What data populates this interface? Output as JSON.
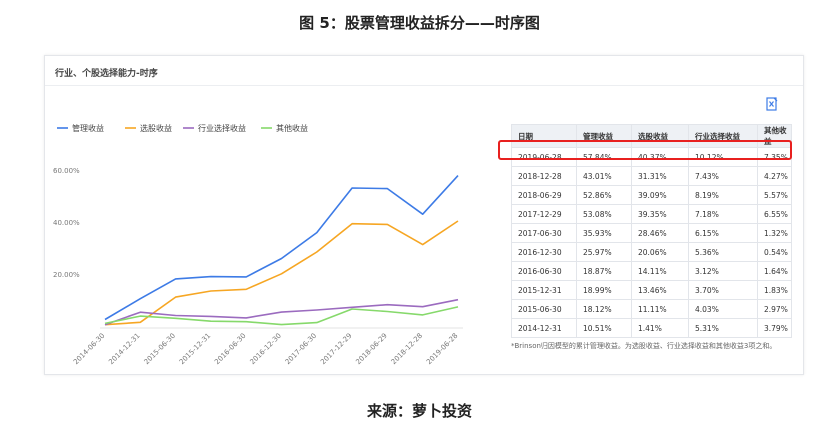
{
  "figure_title": "图 5：股票管理收益拆分——时序图",
  "panel_title": "行业、个股选择能力-时序",
  "source": "来源：萝卜投资",
  "icons": {
    "export": "export-excel-icon"
  },
  "colors": {
    "管理收益": "#3d7be6",
    "选股收益": "#f6a623",
    "行业选择收益": "#9b6bbf",
    "其他收益": "#86d96b",
    "highlight": "#e8201f"
  },
  "chart_data": {
    "type": "line",
    "x": [
      "2014-06-30",
      "2014-12-31",
      "2015-06-30",
      "2015-12-31",
      "2016-06-30",
      "2016-12-30",
      "2017-06-30",
      "2017-12-29",
      "2018-06-29",
      "2018-12-28",
      "2019-06-28"
    ],
    "series": [
      {
        "name": "管理收益",
        "values": [
          2.5,
          10.51,
          18.12,
          18.99,
          18.87,
          25.97,
          35.93,
          53.08,
          52.86,
          43.01,
          57.84
        ]
      },
      {
        "name": "选股收益",
        "values": [
          0.5,
          1.41,
          11.11,
          13.46,
          14.11,
          20.06,
          28.46,
          39.35,
          39.09,
          31.31,
          40.37
        ]
      },
      {
        "name": "行业选择收益",
        "values": [
          0.5,
          5.31,
          4.03,
          3.7,
          3.12,
          5.36,
          6.15,
          7.18,
          8.19,
          7.43,
          10.12
        ]
      },
      {
        "name": "其他收益",
        "values": [
          1.0,
          3.79,
          2.97,
          1.83,
          1.64,
          0.54,
          1.32,
          6.55,
          5.57,
          4.27,
          7.35
        ]
      }
    ],
    "yticks": [
      "20.00%",
      "40.00%",
      "60.00%"
    ],
    "ylim": [
      0,
      70
    ],
    "legend": "top-left",
    "grid": false
  },
  "table": {
    "headers": [
      "日期",
      "管理收益",
      "选股收益",
      "行业选择收益",
      "其他收益"
    ],
    "rows": [
      [
        "2019-06-28",
        "57.84%",
        "40.37%",
        "10.12%",
        "7.35%"
      ],
      [
        "2018-12-28",
        "43.01%",
        "31.31%",
        "7.43%",
        "4.27%"
      ],
      [
        "2018-06-29",
        "52.86%",
        "39.09%",
        "8.19%",
        "5.57%"
      ],
      [
        "2017-12-29",
        "53.08%",
        "39.35%",
        "7.18%",
        "6.55%"
      ],
      [
        "2017-06-30",
        "35.93%",
        "28.46%",
        "6.15%",
        "1.32%"
      ],
      [
        "2016-12-30",
        "25.97%",
        "20.06%",
        "5.36%",
        "0.54%"
      ],
      [
        "2016-06-30",
        "18.87%",
        "14.11%",
        "3.12%",
        "1.64%"
      ],
      [
        "2015-12-31",
        "18.99%",
        "13.46%",
        "3.70%",
        "1.83%"
      ],
      [
        "2015-06-30",
        "18.12%",
        "11.11%",
        "4.03%",
        "2.97%"
      ],
      [
        "2014-12-31",
        "10.51%",
        "1.41%",
        "5.31%",
        "3.79%"
      ]
    ],
    "note": "*Brinson归因模型的累计管理收益。为选股收益、行业选择收益和其他收益3项之和。"
  }
}
